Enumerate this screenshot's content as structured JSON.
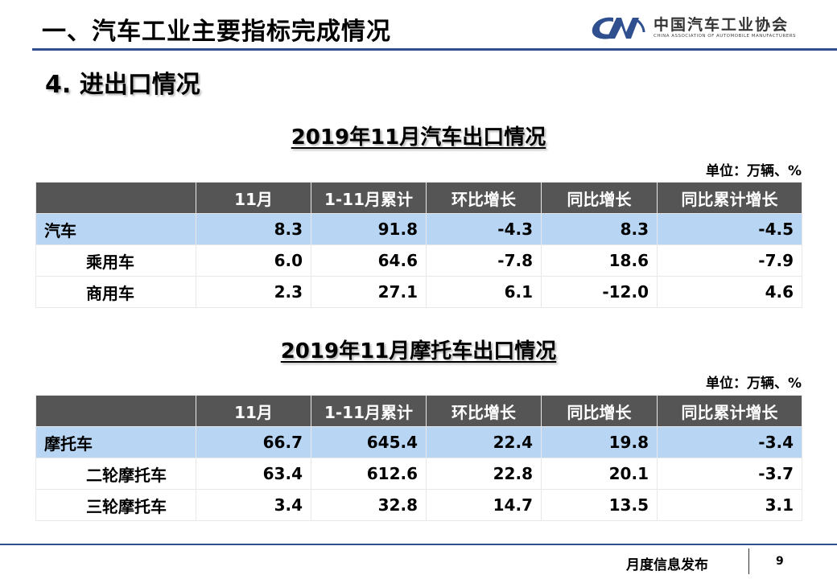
{
  "header": {
    "title": "一、汽车工业主要指标完成情况",
    "logo_cn": "中国汽车工业协会",
    "logo_en": "CHINA ASSOCIATION OF AUTOMOBILE MANUFACTURERS",
    "logo_mark": "CAM"
  },
  "section_title": "4. 进出口情况",
  "auto_table": {
    "title": "2019年11月汽车出口情况",
    "unit": "单位：万辆、%",
    "columns": [
      "",
      "11月",
      "1-11月累计",
      "环比增长",
      "同比增长",
      "同比累计增长"
    ],
    "rows": [
      {
        "label": "汽车",
        "values": [
          "8.3",
          "91.8",
          "-4.3",
          "8.3",
          "-4.5"
        ]
      },
      {
        "label": "乘用车",
        "values": [
          "6.0",
          "64.6",
          "-7.8",
          "18.6",
          "-7.9"
        ]
      },
      {
        "label": "商用车",
        "values": [
          "2.3",
          "27.1",
          "6.1",
          "-12.0",
          "4.6"
        ]
      }
    ]
  },
  "moto_table": {
    "title": "2019年11月摩托车出口情况",
    "unit": "单位：万辆、%",
    "columns": [
      "",
      "11月",
      "1-11月累计",
      "环比增长",
      "同比增长",
      "同比累计增长"
    ],
    "rows": [
      {
        "label": "摩托车",
        "values": [
          "66.7",
          "645.4",
          "22.4",
          "19.8",
          "-3.4"
        ]
      },
      {
        "label": "二轮摩托车",
        "values": [
          "63.4",
          "612.6",
          "22.8",
          "20.1",
          "-3.7"
        ]
      },
      {
        "label": "三轮摩托车",
        "values": [
          "3.4",
          "32.8",
          "14.7",
          "13.5",
          "3.1"
        ]
      }
    ]
  },
  "footer": {
    "text": "月度信息发布",
    "page": "9"
  },
  "colors": {
    "accent": "#2f4f8f",
    "header_fill": "#555555",
    "highlight_row": "#b8d6f3"
  }
}
